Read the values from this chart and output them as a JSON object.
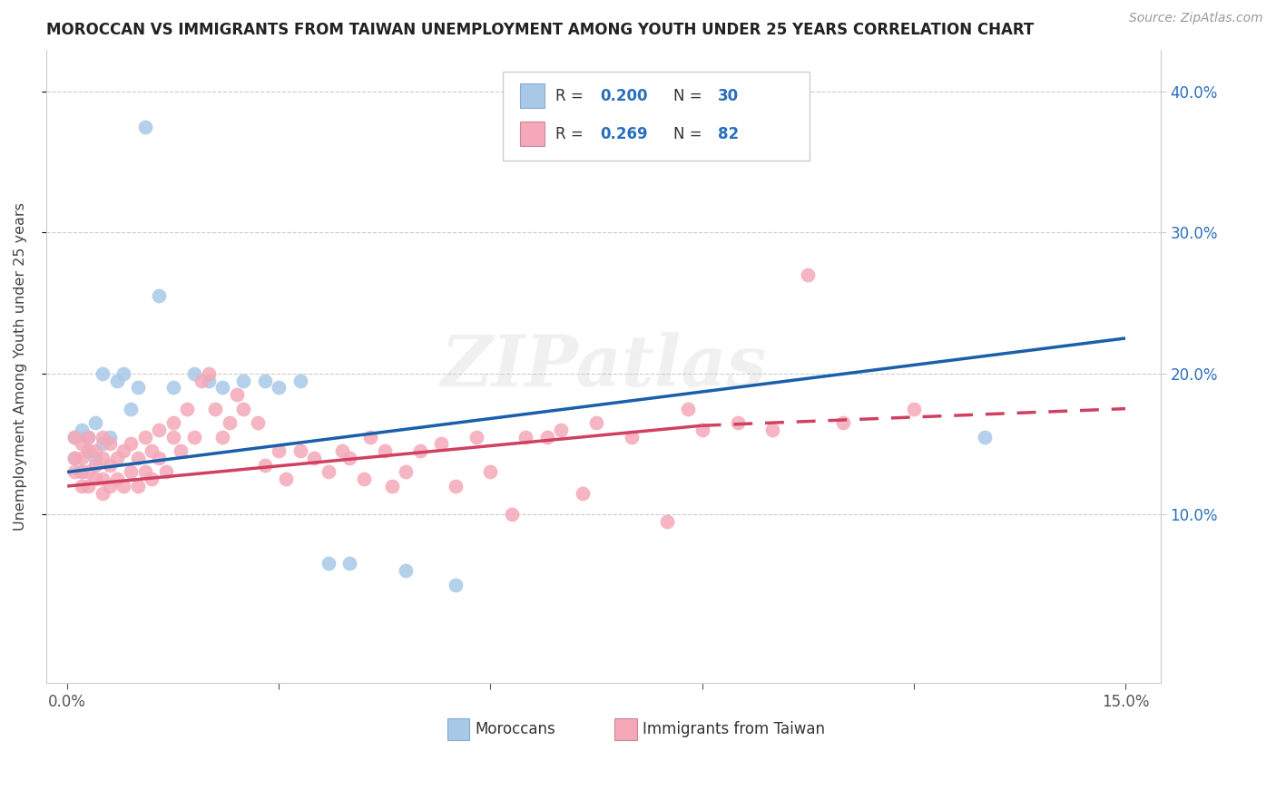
{
  "title": "MOROCCAN VS IMMIGRANTS FROM TAIWAN UNEMPLOYMENT AMONG YOUTH UNDER 25 YEARS CORRELATION CHART",
  "source": "Source: ZipAtlas.com",
  "ylabel": "Unemployment Among Youth under 25 years",
  "moroccan_R": 0.2,
  "moroccan_N": 30,
  "taiwan_R": 0.269,
  "taiwan_N": 82,
  "moroccan_color": "#a8c8e8",
  "taiwan_color": "#f4a8b8",
  "moroccan_line_color": "#1a5fab",
  "taiwan_line_color": "#d04060",
  "legend_label_moroccan": "Moroccans",
  "legend_label_taiwan": "Immigrants from Taiwan",
  "watermark": "ZIPatlas",
  "xlim": [
    -0.003,
    0.155
  ],
  "ylim": [
    -0.02,
    0.43
  ],
  "x_ticks": [
    0.0,
    0.03,
    0.06,
    0.09,
    0.12,
    0.15
  ],
  "x_tick_labels": [
    "0.0%",
    "",
    "",
    "",
    "",
    "15.0%"
  ],
  "y_ticks": [
    0.1,
    0.2,
    0.3,
    0.4
  ],
  "y_tick_labels_right": [
    "10.0%",
    "20.0%",
    "30.0%",
    "40.0%"
  ],
  "right_label_color": "#2a6fbd",
  "grid_color": "#cccccc",
  "title_color": "#222222",
  "label_color": "#555555",
  "moroccan_x": [
    0.001,
    0.001,
    0.002,
    0.002,
    0.003,
    0.003,
    0.004,
    0.004,
    0.005,
    0.005,
    0.006,
    0.007,
    0.008,
    0.009,
    0.01,
    0.011,
    0.013,
    0.015,
    0.018,
    0.02,
    0.022,
    0.025,
    0.028,
    0.03,
    0.033,
    0.037,
    0.04,
    0.048,
    0.055,
    0.13
  ],
  "moroccan_y": [
    0.14,
    0.155,
    0.13,
    0.16,
    0.145,
    0.155,
    0.165,
    0.14,
    0.15,
    0.2,
    0.155,
    0.195,
    0.2,
    0.175,
    0.19,
    0.375,
    0.255,
    0.19,
    0.2,
    0.195,
    0.19,
    0.195,
    0.195,
    0.19,
    0.195,
    0.065,
    0.065,
    0.06,
    0.05,
    0.155
  ],
  "taiwan_x": [
    0.001,
    0.001,
    0.001,
    0.002,
    0.002,
    0.002,
    0.002,
    0.003,
    0.003,
    0.003,
    0.003,
    0.004,
    0.004,
    0.004,
    0.005,
    0.005,
    0.005,
    0.005,
    0.006,
    0.006,
    0.006,
    0.007,
    0.007,
    0.008,
    0.008,
    0.009,
    0.009,
    0.01,
    0.01,
    0.011,
    0.011,
    0.012,
    0.012,
    0.013,
    0.013,
    0.014,
    0.015,
    0.015,
    0.016,
    0.017,
    0.018,
    0.019,
    0.02,
    0.021,
    0.022,
    0.023,
    0.024,
    0.025,
    0.027,
    0.028,
    0.03,
    0.031,
    0.033,
    0.035,
    0.037,
    0.039,
    0.04,
    0.042,
    0.043,
    0.045,
    0.046,
    0.048,
    0.05,
    0.053,
    0.055,
    0.058,
    0.06,
    0.063,
    0.065,
    0.068,
    0.07,
    0.073,
    0.075,
    0.08,
    0.085,
    0.088,
    0.09,
    0.095,
    0.1,
    0.105,
    0.11,
    0.12
  ],
  "taiwan_y": [
    0.13,
    0.14,
    0.155,
    0.12,
    0.13,
    0.14,
    0.15,
    0.12,
    0.13,
    0.145,
    0.155,
    0.125,
    0.135,
    0.145,
    0.115,
    0.125,
    0.14,
    0.155,
    0.12,
    0.135,
    0.15,
    0.125,
    0.14,
    0.12,
    0.145,
    0.13,
    0.15,
    0.12,
    0.14,
    0.13,
    0.155,
    0.125,
    0.145,
    0.14,
    0.16,
    0.13,
    0.155,
    0.165,
    0.145,
    0.175,
    0.155,
    0.195,
    0.2,
    0.175,
    0.155,
    0.165,
    0.185,
    0.175,
    0.165,
    0.135,
    0.145,
    0.125,
    0.145,
    0.14,
    0.13,
    0.145,
    0.14,
    0.125,
    0.155,
    0.145,
    0.12,
    0.13,
    0.145,
    0.15,
    0.12,
    0.155,
    0.13,
    0.1,
    0.155,
    0.155,
    0.16,
    0.115,
    0.165,
    0.155,
    0.095,
    0.175,
    0.16,
    0.165,
    0.16,
    0.27,
    0.165,
    0.175
  ]
}
